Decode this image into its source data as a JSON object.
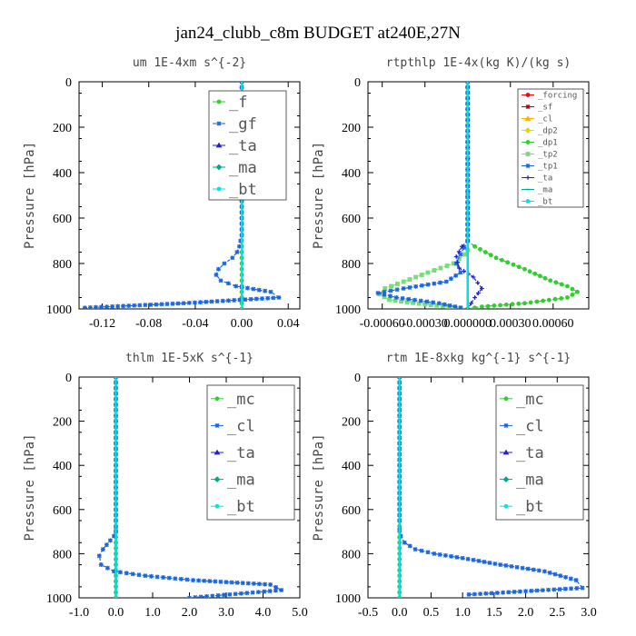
{
  "figure": {
    "title": "jan24_clubb_c8m  BUDGET at240E,27N"
  },
  "colors": {
    "green": "#33cc33",
    "blue": "#1a66dd",
    "cyan": "#00e5e5",
    "red": "#e01010",
    "orange": "#ffb000",
    "yellow": "#dddd00",
    "violet": "#2222cc",
    "frame": "#000000"
  },
  "chart_data": [
    {
      "type": "line",
      "title": "um   1E-4xm  s^{-2}",
      "ylabel": "Pressure [hPa]",
      "xlim": [
        -0.14,
        0.05
      ],
      "ylim": [
        1000,
        0
      ],
      "xticks": [
        -0.12,
        -0.08,
        -0.04,
        0.0,
        0.04
      ],
      "xtick_labels": [
        "-0.12",
        "-0.08",
        "-0.04",
        "0.00",
        "0.04"
      ],
      "yticks": [
        0,
        200,
        400,
        600,
        800,
        1000
      ],
      "ytick_labels": [
        "0",
        "200",
        "400",
        "600",
        "800",
        "1000"
      ],
      "legend_position": "top-right",
      "series": [
        {
          "name": "_f",
          "color": "#33cc33",
          "x": [
            0,
            0,
            0,
            0,
            0,
            0,
            0,
            0,
            0,
            0,
            0,
            0,
            0,
            0,
            0,
            0,
            0,
            0,
            0,
            0,
            0,
            0,
            0,
            0,
            0,
            0,
            0,
            0,
            0,
            0,
            0,
            0,
            0,
            0,
            0,
            0,
            0,
            0,
            0,
            0,
            0
          ],
          "y": [
            0,
            25,
            50,
            75,
            100,
            125,
            150,
            175,
            200,
            225,
            250,
            275,
            300,
            325,
            350,
            375,
            400,
            425,
            450,
            475,
            500,
            525,
            550,
            575,
            600,
            625,
            650,
            675,
            700,
            725,
            750,
            775,
            800,
            825,
            850,
            875,
            900,
            925,
            950,
            975,
            1000
          ]
        },
        {
          "name": "_gf",
          "color": "#1a66dd",
          "x": [
            0,
            0,
            0,
            0,
            0,
            0,
            0,
            0,
            0,
            0,
            0,
            0,
            0,
            0,
            0,
            0,
            0,
            0,
            0,
            0,
            0,
            0,
            0,
            0,
            0,
            0,
            0,
            0,
            -0.001,
            -0.002,
            -0.004,
            -0.008,
            -0.015,
            -0.02,
            -0.022,
            -0.018,
            -0.005,
            0.025,
            0.032,
            -0.05,
            -0.135
          ],
          "y": [
            0,
            25,
            50,
            75,
            100,
            125,
            150,
            175,
            200,
            225,
            250,
            275,
            300,
            325,
            350,
            375,
            400,
            425,
            450,
            475,
            500,
            525,
            550,
            575,
            600,
            625,
            650,
            675,
            700,
            725,
            750,
            775,
            800,
            825,
            850,
            875,
            900,
            925,
            950,
            975,
            995
          ]
        },
        {
          "name": "_ta",
          "color": "#2222cc",
          "x": [
            0,
            0,
            0
          ],
          "y": [
            0,
            500,
            1000
          ]
        },
        {
          "name": "_ma",
          "color": "#00aa88",
          "x": [
            0,
            0,
            0
          ],
          "y": [
            0,
            500,
            1000
          ]
        },
        {
          "name": "_bt",
          "color": "#00e5e5",
          "x": [
            0,
            0,
            0
          ],
          "y": [
            0,
            500,
            1000
          ]
        }
      ]
    },
    {
      "type": "line",
      "title": "rtpthlp   1E-4x(kg K)/(kg s)",
      "ylabel": "Pressure [hPa]",
      "xlim": [
        -0.0007,
        0.00085
      ],
      "ylim": [
        1000,
        0
      ],
      "xticks": [
        -0.0006,
        -0.0003,
        0.0,
        0.0003,
        0.0006
      ],
      "xtick_labels": [
        "-0.00060",
        "-0.00030",
        "0.000000",
        "0.00030",
        "0.00060"
      ],
      "yticks": [
        0,
        200,
        400,
        600,
        800,
        1000
      ],
      "ytick_labels": [
        "0",
        "200",
        "400",
        "600",
        "800",
        "1000"
      ],
      "legend_position": "top-right",
      "series": [
        {
          "name": "_forcing",
          "color": "#e01010",
          "x": [
            0,
            0,
            0
          ],
          "y": [
            0,
            500,
            1000
          ]
        },
        {
          "name": "_sf",
          "color": "#c00000",
          "x": [
            0,
            0,
            0
          ],
          "y": [
            0,
            500,
            1000
          ]
        },
        {
          "name": "_cl",
          "color": "#ffb000",
          "x": [
            0,
            0,
            0
          ],
          "y": [
            0,
            500,
            1000
          ]
        },
        {
          "name": "_dp2",
          "color": "#dddd00",
          "x": [
            0,
            0,
            0
          ],
          "y": [
            0,
            500,
            1000
          ]
        },
        {
          "name": "_dp1",
          "color": "#33cc33",
          "x": [
            0,
            0,
            0,
            5e-05,
            0.0002,
            0.0004,
            0.00058,
            0.0007,
            0.00077,
            0.0007,
            0.0004,
            0.0001,
            0
          ],
          "y": [
            0,
            600,
            700,
            725,
            775,
            825,
            875,
            900,
            925,
            950,
            975,
            990,
            1000
          ]
        },
        {
          "name": "_tp2",
          "color": "#77dd77",
          "x": [
            0,
            0,
            0,
            -2e-05,
            -0.0001,
            -0.00028,
            -0.00045,
            -0.00058,
            -0.00062,
            -0.00055,
            -0.0003,
            -5e-05
          ],
          "y": [
            0,
            700,
            740,
            760,
            800,
            840,
            880,
            910,
            935,
            960,
            980,
            995
          ]
        },
        {
          "name": "_tp1",
          "color": "#1a66dd",
          "x": [
            0,
            0,
            -5e-05,
            -8e-05,
            -5e-05,
            -0.00015,
            -0.00045,
            -0.00063,
            -0.0005,
            -0.0002,
            -5e-05
          ],
          "y": [
            0,
            700,
            760,
            800,
            840,
            880,
            910,
            930,
            950,
            975,
            995
          ]
        },
        {
          "name": "_ta",
          "color": "#2222cc",
          "x": [
            0,
            0,
            -4e-05,
            -8e-05,
            -6e-05,
            4e-05,
            0.0001,
            5e-05,
            0
          ],
          "y": [
            0,
            700,
            725,
            770,
            820,
            860,
            910,
            950,
            1000
          ]
        },
        {
          "name": "_ma",
          "color": "#00aa88",
          "x": [
            0,
            0,
            0
          ],
          "y": [
            0,
            500,
            1000
          ]
        },
        {
          "name": "_bt",
          "color": "#00e5e5",
          "x": [
            0,
            0,
            0
          ],
          "y": [
            0,
            500,
            1000
          ]
        }
      ]
    },
    {
      "type": "line",
      "title": "thlm   1E-5xK  s^{-1}",
      "ylabel": "Pressure [hPa]",
      "xlim": [
        -1.0,
        5.0
      ],
      "ylim": [
        1000,
        0
      ],
      "xticks": [
        -1.0,
        0.0,
        1.0,
        2.0,
        3.0,
        4.0,
        5.0
      ],
      "xtick_labels": [
        "-1.0",
        "0.0",
        "1.0",
        "2.0",
        "3.0",
        "4.0",
        "5.0"
      ],
      "yticks": [
        0,
        200,
        400,
        600,
        800,
        1000
      ],
      "ytick_labels": [
        "0",
        "200",
        "400",
        "600",
        "800",
        "1000"
      ],
      "legend_position": "top-right",
      "series": [
        {
          "name": "_mc",
          "color": "#33cc33",
          "x": [
            0,
            0,
            0,
            0,
            0,
            0,
            0,
            0,
            0,
            0,
            0,
            0,
            0,
            0,
            0,
            0,
            0,
            0,
            0,
            0,
            0,
            0,
            0,
            0,
            0,
            0,
            0,
            0,
            0,
            0,
            0,
            0,
            0,
            0,
            0,
            0,
            0,
            0,
            0,
            0,
            0
          ],
          "y": [
            0,
            25,
            50,
            75,
            100,
            125,
            150,
            175,
            200,
            225,
            250,
            275,
            300,
            325,
            350,
            375,
            400,
            425,
            450,
            475,
            500,
            525,
            550,
            575,
            600,
            625,
            650,
            675,
            700,
            725,
            750,
            775,
            800,
            825,
            850,
            875,
            900,
            925,
            950,
            975,
            1000
          ]
        },
        {
          "name": "_cl",
          "color": "#1a66dd",
          "x": [
            0,
            0,
            0,
            0,
            0,
            0,
            0,
            0,
            0,
            0,
            -0.05,
            -0.15,
            -0.25,
            -0.35,
            -0.45,
            -0.4,
            -0.05,
            0.8,
            2.1,
            4.2,
            4.5,
            2.0
          ],
          "y": [
            0,
            100,
            200,
            300,
            400,
            500,
            600,
            650,
            680,
            700,
            720,
            740,
            760,
            780,
            810,
            850,
            880,
            900,
            920,
            940,
            965,
            1000
          ]
        },
        {
          "name": "_ta",
          "color": "#2222cc",
          "x": [
            0,
            0,
            0
          ],
          "y": [
            0,
            500,
            1000
          ]
        },
        {
          "name": "_ma",
          "color": "#00aa88",
          "x": [
            0,
            0,
            0
          ],
          "y": [
            0,
            500,
            1000
          ]
        },
        {
          "name": "_bt",
          "color": "#00e5e5",
          "x": [
            0,
            0,
            0
          ],
          "y": [
            0,
            500,
            1000
          ]
        }
      ]
    },
    {
      "type": "line",
      "title": "rtm   1E-8xkg  kg^{-1} s^{-1}",
      "ylabel": "Pressure [hPa]",
      "xlim": [
        -0.5,
        3.0
      ],
      "ylim": [
        1000,
        0
      ],
      "xticks": [
        -0.5,
        0.0,
        0.5,
        1.0,
        1.5,
        2.0,
        2.5,
        3.0
      ],
      "xtick_labels": [
        "-0.5",
        "0.0",
        "0.5",
        "1.0",
        "1.5",
        "2.0",
        "2.5",
        "3.0"
      ],
      "yticks": [
        0,
        200,
        400,
        600,
        800,
        1000
      ],
      "ytick_labels": [
        "0",
        "200",
        "400",
        "600",
        "800",
        "1000"
      ],
      "legend_position": "top-right",
      "series": [
        {
          "name": "_mc",
          "color": "#33cc33",
          "x": [
            0,
            0,
            0,
            0,
            0,
            0,
            0,
            0,
            0,
            0,
            0,
            0,
            0,
            0,
            0,
            0,
            0,
            0,
            0,
            0,
            0,
            0,
            0,
            0,
            0,
            0,
            0,
            0,
            0,
            0,
            0,
            0,
            0,
            0,
            0,
            0,
            0,
            0,
            0,
            0,
            0
          ],
          "y": [
            0,
            25,
            50,
            75,
            100,
            125,
            150,
            175,
            200,
            225,
            250,
            275,
            300,
            325,
            350,
            375,
            400,
            425,
            450,
            475,
            500,
            525,
            550,
            575,
            600,
            625,
            650,
            675,
            700,
            725,
            750,
            775,
            800,
            825,
            850,
            875,
            900,
            925,
            950,
            975,
            1000
          ]
        },
        {
          "name": "_cl",
          "color": "#1a66dd",
          "x": [
            0,
            0,
            0,
            0,
            0,
            0,
            0,
            0,
            0,
            0.02,
            0.08,
            0.25,
            0.55,
            1.0,
            1.6,
            2.3,
            2.8,
            2.9,
            2.0,
            1.1
          ],
          "y": [
            0,
            100,
            200,
            300,
            400,
            500,
            600,
            650,
            690,
            720,
            750,
            780,
            800,
            820,
            850,
            880,
            920,
            955,
            970,
            985
          ]
        },
        {
          "name": "_ta",
          "color": "#2222cc",
          "x": [
            0,
            0,
            0
          ],
          "y": [
            0,
            500,
            1000
          ]
        },
        {
          "name": "_ma",
          "color": "#00aa88",
          "x": [
            0,
            0,
            0
          ],
          "y": [
            0,
            500,
            1000
          ]
        },
        {
          "name": "_bt",
          "color": "#00e5e5",
          "x": [
            0,
            0,
            0
          ],
          "y": [
            0,
            500,
            1000
          ]
        }
      ]
    }
  ]
}
